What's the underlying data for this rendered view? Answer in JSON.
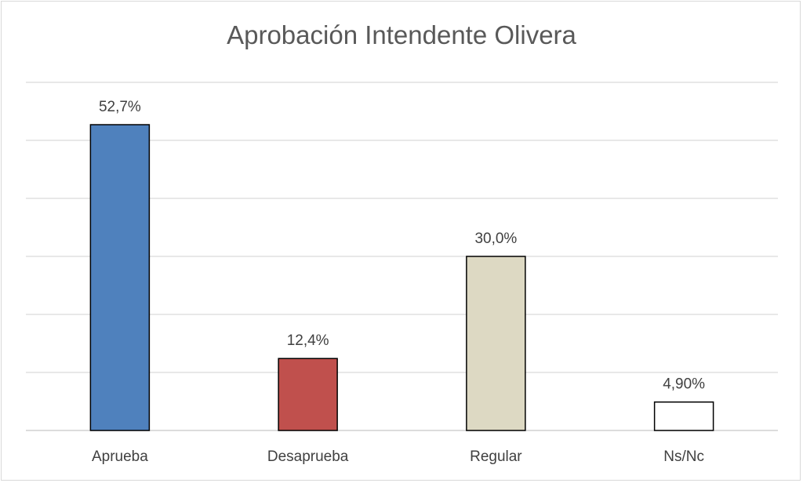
{
  "chart_data": {
    "type": "bar",
    "title": "Aprobación Intendente Olivera",
    "xlabel": "",
    "ylabel": "",
    "categories": [
      "Aprueba",
      "Desaprueba",
      "Regular",
      "Ns/Nc"
    ],
    "values": [
      52.7,
      12.4,
      30.0,
      4.9
    ],
    "data_labels": [
      "52,7%",
      "12,4%",
      "30,0%",
      "4,90%"
    ],
    "bar_colors": [
      "#4f81bd",
      "#c0504d",
      "#ddd9c3",
      "#ffffff"
    ],
    "ylim": [
      0,
      60
    ],
    "grid": true,
    "y_axis_labels_shown": false,
    "legend": "none"
  }
}
